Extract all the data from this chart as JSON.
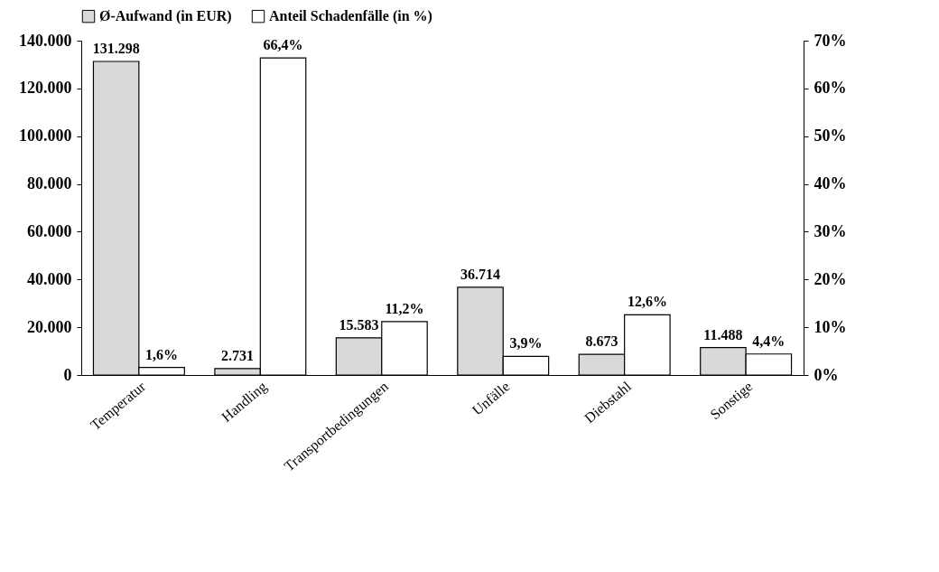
{
  "chart_data": {
    "type": "bar",
    "categories": [
      "Temperatur",
      "Handling",
      "Transportbedingungen",
      "Unfälle",
      "Diebstahl",
      "Sonstige"
    ],
    "series": [
      {
        "name": "Ø-Aufwand (in EUR)",
        "color": "#d9d9d9",
        "values": [
          131298,
          2731,
          15583,
          36714,
          8673,
          11488
        ],
        "value_labels": [
          "131.298",
          "2.731",
          "15.583",
          "36.714",
          "8.673",
          "11.488"
        ]
      },
      {
        "name": "Anteil Schadenfälle (in %)",
        "color": "#ffffff",
        "axis": "y2",
        "values": [
          1.6,
          66.4,
          11.2,
          3.9,
          12.6,
          4.4
        ],
        "value_labels": [
          "1,6%",
          "66,4%",
          "11,2%",
          "3,9%",
          "12,6%",
          "4,4%"
        ]
      }
    ],
    "ylim": [
      0,
      140000
    ],
    "yticks": [
      {
        "value": 0,
        "label": "0"
      },
      {
        "value": 20000,
        "label": "20.000"
      },
      {
        "value": 40000,
        "label": "40.000"
      },
      {
        "value": 60000,
        "label": "60.000"
      },
      {
        "value": 80000,
        "label": "80.000"
      },
      {
        "value": 100000,
        "label": "100.000"
      },
      {
        "value": 120000,
        "label": "120.000"
      },
      {
        "value": 140000,
        "label": "140.000"
      }
    ],
    "y2lim": [
      0,
      70
    ],
    "y2ticks": [
      {
        "value": 0,
        "label": "0%"
      },
      {
        "value": 10,
        "label": "10%"
      },
      {
        "value": 20,
        "label": "20%"
      },
      {
        "value": 30,
        "label": "30%"
      },
      {
        "value": 40,
        "label": "40%"
      },
      {
        "value": 50,
        "label": "50%"
      },
      {
        "value": 60,
        "label": "60%"
      },
      {
        "value": 70,
        "label": "70%"
      }
    ],
    "legend": "top",
    "grid": false
  }
}
